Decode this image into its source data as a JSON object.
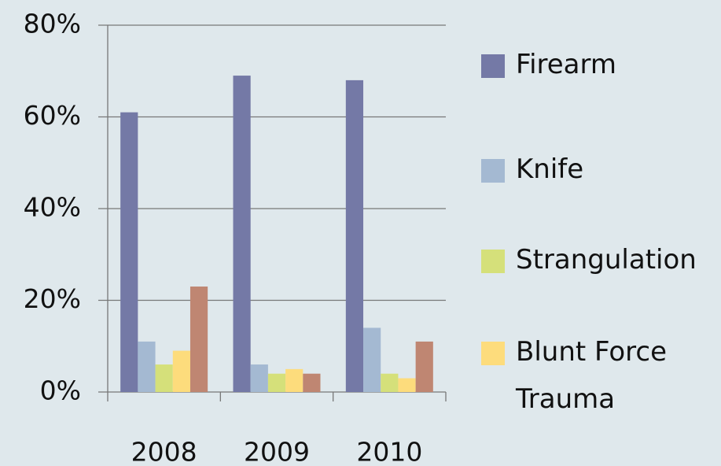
{
  "chart_data": {
    "type": "bar",
    "categories": [
      "2008",
      "2009",
      "2010"
    ],
    "series": [
      {
        "name": "Firearm",
        "color": "#7479a6",
        "values": [
          61,
          69,
          68
        ]
      },
      {
        "name": "Knife",
        "color": "#a4b9d2",
        "values": [
          11,
          6,
          14
        ]
      },
      {
        "name": "Strangulation",
        "color": "#d5e07a",
        "values": [
          6,
          4,
          4
        ]
      },
      {
        "name": "Blunt Force Trauma",
        "color": "#fddc7c",
        "values": [
          9,
          5,
          3
        ]
      },
      {
        "color": "#bf8672",
        "values": [
          23,
          4,
          11
        ]
      }
    ],
    "ylim": [
      0,
      80
    ],
    "yticks": [
      {
        "value": 0,
        "label": "0%"
      },
      {
        "value": 20,
        "label": "20%"
      },
      {
        "value": 40,
        "label": "40%"
      },
      {
        "value": 60,
        "label": "60%"
      },
      {
        "value": 80,
        "label": "80%"
      }
    ],
    "grid": true
  }
}
